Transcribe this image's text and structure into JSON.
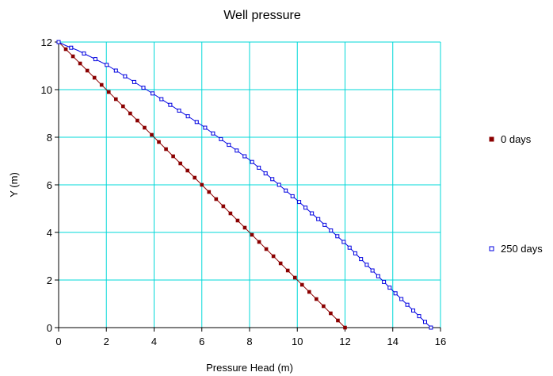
{
  "chart_data": {
    "type": "line",
    "title": "Well pressure",
    "xlabel": "Pressure Head (m)",
    "ylabel": "Y (m)",
    "xlim": [
      0,
      16
    ],
    "ylim": [
      0,
      12
    ],
    "xticks": [
      0,
      2,
      4,
      6,
      8,
      10,
      12,
      14,
      16
    ],
    "yticks": [
      0,
      2,
      4,
      6,
      8,
      10,
      12
    ],
    "grid": true,
    "grid_color": "#00d8d8",
    "legend_position": "right",
    "series": [
      {
        "name": "0 days",
        "color": "#8b0000",
        "marker": "filled-square",
        "points": [
          [
            0,
            12
          ],
          [
            12,
            0
          ]
        ],
        "n_markers": 41
      },
      {
        "name": "250 days",
        "color": "#0000e0",
        "marker": "open-square",
        "points": [
          [
            0,
            12
          ],
          [
            0.3,
            11.85
          ],
          [
            0.8,
            11.65
          ],
          [
            2,
            11.05
          ],
          [
            4,
            9.8
          ],
          [
            6,
            8.5
          ],
          [
            8,
            7.05
          ],
          [
            10,
            5.35
          ],
          [
            12,
            3.55
          ],
          [
            14,
            1.55
          ],
          [
            15.6,
            0
          ]
        ],
        "n_markers": 51
      }
    ]
  }
}
